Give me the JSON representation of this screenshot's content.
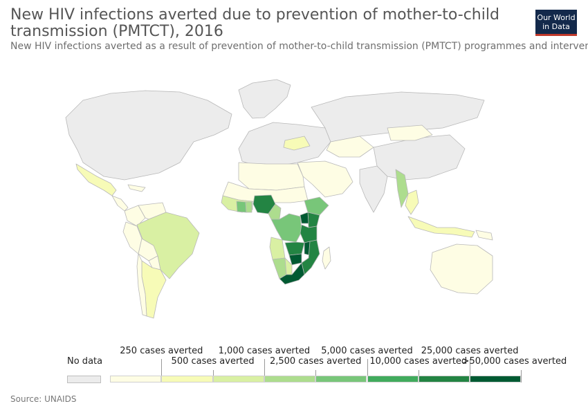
{
  "header": {
    "title": "New HIV infections averted due to prevention of mother-to-child transmission (PMTCT), 2016",
    "subtitle": "New HIV infections averted as a result of prevention of mother-to-child transmission (PMTCT) programmes and intervention"
  },
  "logo": {
    "line1": "Our World",
    "line2": "in Data",
    "bg": "#13294b",
    "stripe": "#c0392b"
  },
  "legend": {
    "no_data_label": "No data",
    "no_data_color": "#ececec",
    "bins": [
      {
        "color": "#fefde4",
        "end_label": "250 cases averted"
      },
      {
        "color": "#f7fbb7",
        "end_label": "500 cases averted"
      },
      {
        "color": "#d9f0a3",
        "end_label": "1,000 cases averted"
      },
      {
        "color": "#addd8e",
        "end_label": "2,500 cases averted"
      },
      {
        "color": "#78c679",
        "end_label": "5,000 cases averted"
      },
      {
        "color": "#41ab5d",
        "end_label": "10,000 cases averted"
      },
      {
        "color": "#238443",
        "end_label": "25,000 cases averted"
      },
      {
        "color": "#005a32",
        "end_label": ">50,000 cases averted"
      }
    ]
  },
  "map": {
    "regions": [
      {
        "name": "Greenland",
        "color": "#ececec"
      },
      {
        "name": "North America",
        "color": "#ececec"
      },
      {
        "name": "Mexico",
        "color": "#f7fbb7"
      },
      {
        "name": "Central America",
        "color": "#fefde4"
      },
      {
        "name": "Caribbean",
        "color": "#fefde4"
      },
      {
        "name": "Colombia",
        "color": "#fefde4"
      },
      {
        "name": "Venezuela",
        "color": "#fefde4"
      },
      {
        "name": "Peru",
        "color": "#fefde4"
      },
      {
        "name": "Brazil",
        "color": "#d9f0a3"
      },
      {
        "name": "Bolivia",
        "color": "#fefde4"
      },
      {
        "name": "Paraguay",
        "color": "#fefde4"
      },
      {
        "name": "Argentina",
        "color": "#f7fbb7"
      },
      {
        "name": "Chile",
        "color": "#fefde4"
      },
      {
        "name": "Europe",
        "color": "#ececec"
      },
      {
        "name": "Ukraine",
        "color": "#f7fbb7"
      },
      {
        "name": "Russia",
        "color": "#ececec"
      },
      {
        "name": "Kazakhstan",
        "color": "#fefde4"
      },
      {
        "name": "Middle East",
        "color": "#fefde4"
      },
      {
        "name": "North Africa",
        "color": "#fefde4"
      },
      {
        "name": "Sahel",
        "color": "#fefde4"
      },
      {
        "name": "West Africa",
        "color": "#d9f0a3"
      },
      {
        "name": "Cote d'Ivoire",
        "color": "#78c679"
      },
      {
        "name": "Ghana",
        "color": "#addd8e"
      },
      {
        "name": "Nigeria",
        "color": "#238443"
      },
      {
        "name": "Cameroon",
        "color": "#addd8e"
      },
      {
        "name": "Ethiopia",
        "color": "#78c679"
      },
      {
        "name": "DR Congo",
        "color": "#78c679"
      },
      {
        "name": "Kenya",
        "color": "#238443"
      },
      {
        "name": "Uganda",
        "color": "#005a32"
      },
      {
        "name": "Tanzania",
        "color": "#238443"
      },
      {
        "name": "Angola",
        "color": "#d9f0a3"
      },
      {
        "name": "Zambia",
        "color": "#238443"
      },
      {
        "name": "Malawi",
        "color": "#005a32"
      },
      {
        "name": "Mozambique",
        "color": "#238443"
      },
      {
        "name": "Zimbabwe",
        "color": "#005a32"
      },
      {
        "name": "Namibia",
        "color": "#addd8e"
      },
      {
        "name": "Botswana",
        "color": "#d9f0a3"
      },
      {
        "name": "South Africa",
        "color": "#005a32"
      },
      {
        "name": "Madagascar",
        "color": "#fefde4"
      },
      {
        "name": "India",
        "color": "#ececec"
      },
      {
        "name": "China",
        "color": "#ececec"
      },
      {
        "name": "Myanmar",
        "color": "#addd8e"
      },
      {
        "name": "Thailand",
        "color": "#f7fbb7"
      },
      {
        "name": "Indonesia",
        "color": "#f7fbb7"
      },
      {
        "name": "Papua New Guinea",
        "color": "#fefde4"
      },
      {
        "name": "Australia",
        "color": "#fefde4"
      },
      {
        "name": "Mongolia",
        "color": "#fefde4"
      }
    ]
  },
  "footer": {
    "source": "Source: UNAIDS"
  }
}
